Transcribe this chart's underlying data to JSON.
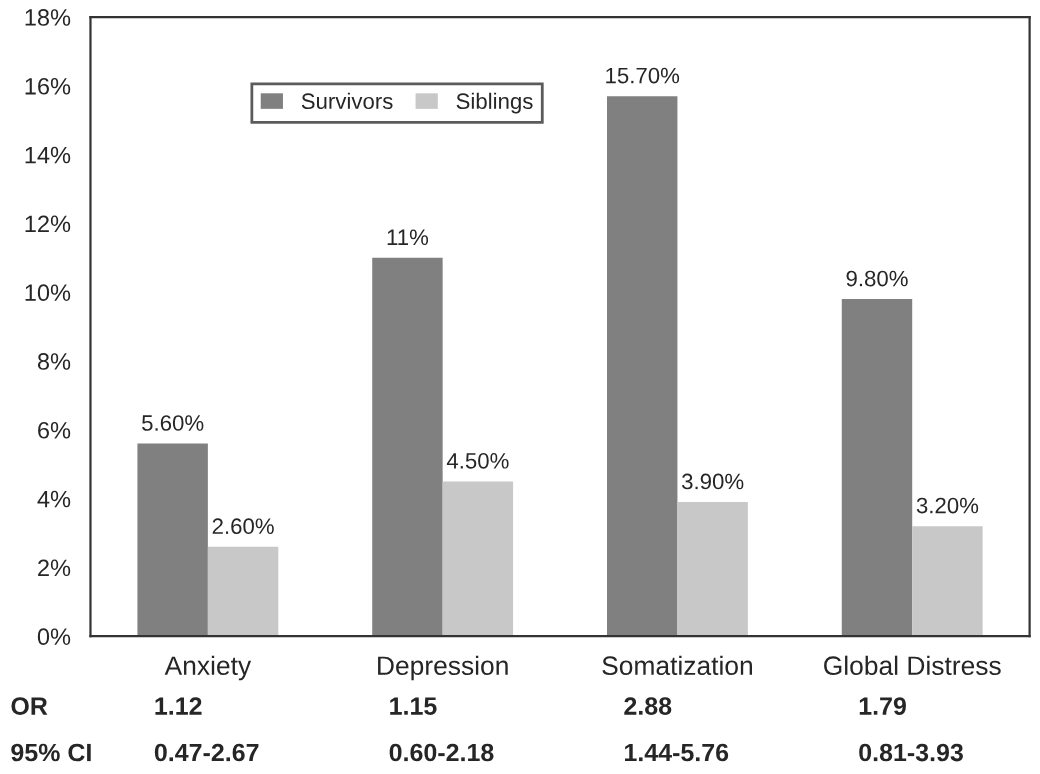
{
  "chart_data": {
    "type": "bar",
    "categories": [
      "Anxiety",
      "Depression",
      "Somatization",
      "Global Distress"
    ],
    "series": [
      {
        "name": "Survivors",
        "color": "#808080",
        "values": [
          5.6,
          11,
          15.7,
          9.8
        ],
        "value_labels": [
          "5.60%",
          "11%",
          "15.70%",
          "9.80%"
        ]
      },
      {
        "name": "Siblings",
        "color": "#c8c8c8",
        "values": [
          2.6,
          4.5,
          3.9,
          3.2
        ],
        "value_labels": [
          "2.60%",
          "4.50%",
          "3.90%",
          "3.20%"
        ]
      }
    ],
    "ylim": [
      0,
      18
    ],
    "yticks": [
      {
        "value": 0,
        "label": "0%"
      },
      {
        "value": 2,
        "label": "2%"
      },
      {
        "value": 4,
        "label": "4%"
      },
      {
        "value": 6,
        "label": "6%"
      },
      {
        "value": 8,
        "label": "8%"
      },
      {
        "value": 10,
        "label": "10%"
      },
      {
        "value": 12,
        "label": "12%"
      },
      {
        "value": 14,
        "label": "14%"
      },
      {
        "value": 16,
        "label": "16%"
      },
      {
        "value": 18,
        "label": "18%"
      }
    ],
    "legend": "top left",
    "grid": false,
    "annotations": [
      "OR",
      "1.12",
      "1.15",
      "2.88",
      "1.79",
      "95% CI",
      "0.47-2.67",
      "0.60-2.18",
      "1.44-5.76",
      "0.81-3.93"
    ]
  }
}
